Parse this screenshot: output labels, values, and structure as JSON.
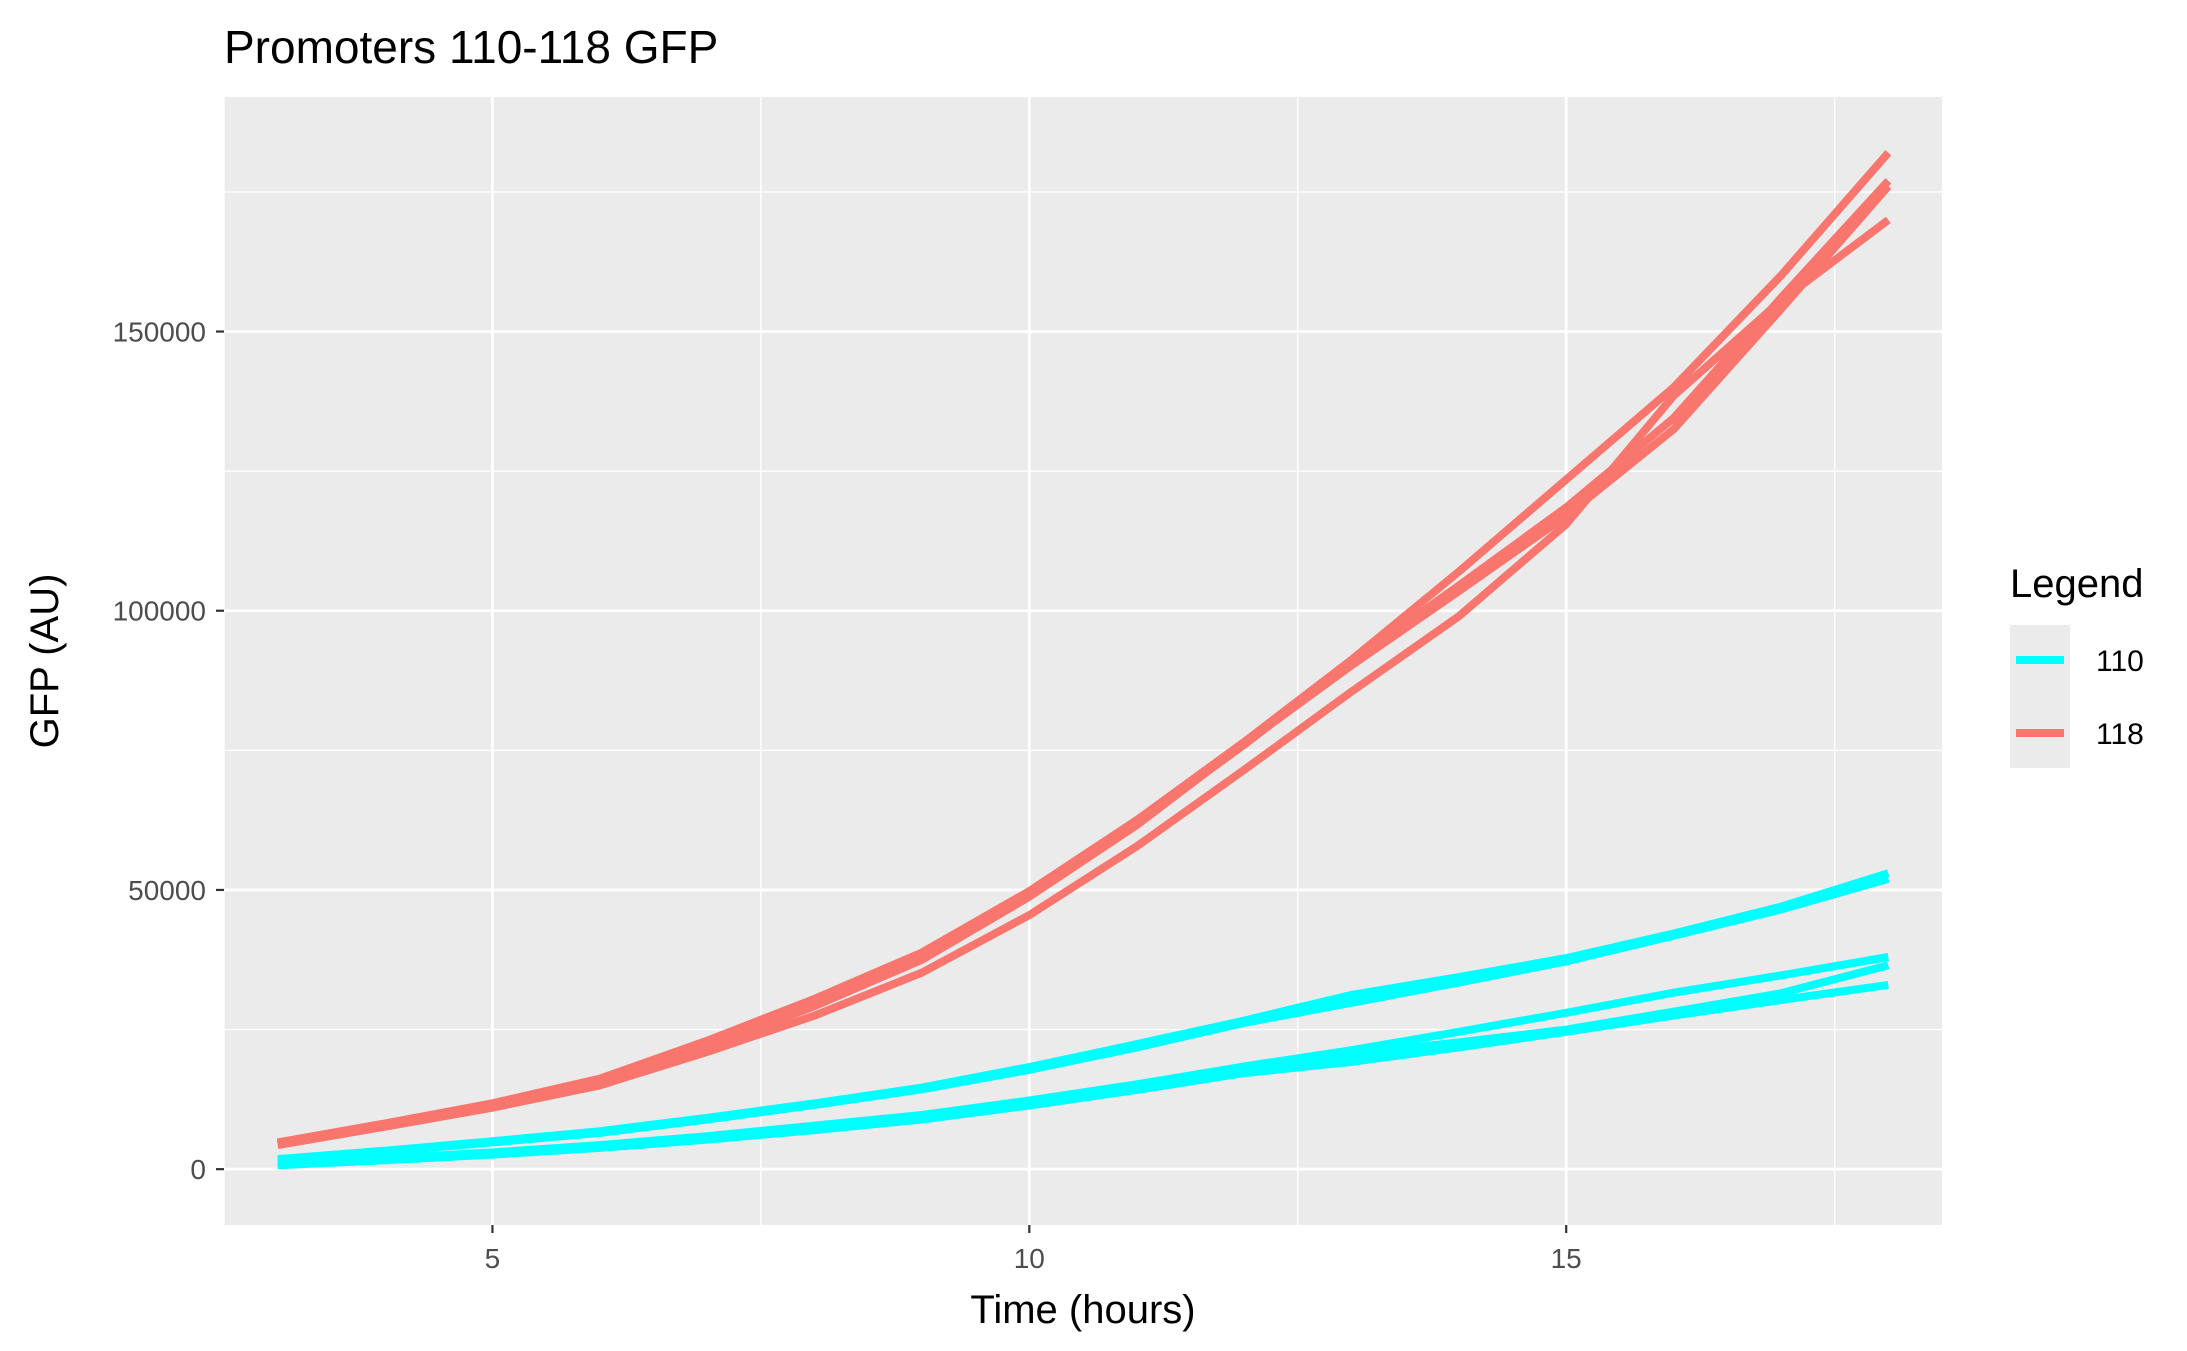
{
  "chart_data": {
    "type": "line",
    "title": "Promoters 110-118 GFP",
    "xlabel": "Time (hours)",
    "ylabel": "GFP (AU)",
    "xlim": [
      2.5,
      18.5
    ],
    "ylim": [
      -10000,
      192000
    ],
    "x_ticks": [
      5,
      10,
      15
    ],
    "x_tick_labels": [
      "5",
      "10",
      "15"
    ],
    "y_ticks": [
      0,
      50000,
      100000,
      150000
    ],
    "y_tick_labels": [
      "0",
      "50000",
      "100000",
      "150000"
    ],
    "x_minor_ticks": [
      2.5,
      7.5,
      12.5,
      17.5
    ],
    "y_minor_ticks": [
      25000,
      75000,
      125000,
      175000
    ],
    "grid": true,
    "legend": {
      "title": "Legend",
      "position": "right",
      "entries": [
        {
          "label": "110",
          "color": "#00ffff"
        },
        {
          "label": "118",
          "color": "#f8766d"
        }
      ]
    },
    "x": [
      3,
      4,
      5,
      6,
      7,
      8,
      9,
      10,
      11,
      12,
      13,
      14,
      15,
      16,
      17,
      18
    ],
    "series": [
      {
        "group": "110",
        "color": "#00ffff",
        "values": [
          1800,
          3300,
          5000,
          6800,
          9200,
          11800,
          14600,
          18300,
          22400,
          26600,
          31200,
          34400,
          37800,
          42200,
          47000,
          53000
        ]
      },
      {
        "group": "110",
        "color": "#00ffff",
        "values": [
          1600,
          3100,
          4800,
          6500,
          8900,
          11500,
          14300,
          17800,
          21800,
          26200,
          29800,
          33400,
          37200,
          41800,
          46500,
          52000
        ]
      },
      {
        "group": "110",
        "color": "#00ffff",
        "values": [
          900,
          1900,
          3000,
          4300,
          5900,
          7800,
          9700,
          12300,
          15200,
          18400,
          21300,
          24600,
          28000,
          31600,
          34700,
          38000
        ]
      },
      {
        "group": "110",
        "color": "#00ffff",
        "values": [
          800,
          1700,
          2800,
          4000,
          5600,
          7400,
          9400,
          11900,
          14700,
          17500,
          20600,
          22700,
          25000,
          28200,
          31500,
          36500
        ]
      },
      {
        "group": "110",
        "color": "#00ffff",
        "values": [
          700,
          1600,
          2600,
          3800,
          5300,
          7000,
          8900,
          11400,
          14200,
          17200,
          19200,
          21800,
          24600,
          27500,
          30300,
          33000
        ]
      },
      {
        "group": "118",
        "color": "#f8766d",
        "values": [
          4800,
          8200,
          11800,
          16200,
          23000,
          30500,
          38800,
          49800,
          62500,
          76500,
          91200,
          107000,
          123500,
          140000,
          160000,
          182000
        ]
      },
      {
        "group": "118",
        "color": "#f8766d",
        "values": [
          4700,
          8000,
          11500,
          15800,
          22400,
          30000,
          38200,
          49200,
          62000,
          76000,
          90800,
          104500,
          118500,
          134500,
          156000,
          177000
        ]
      },
      {
        "group": "118",
        "color": "#f8766d",
        "values": [
          4500,
          7800,
          11300,
          15500,
          21800,
          29200,
          37500,
          48800,
          61600,
          76200,
          90200,
          103500,
          117000,
          132500,
          154000,
          176000
        ]
      },
      {
        "group": "118",
        "color": "#f8766d",
        "values": [
          4300,
          7600,
          11000,
          15000,
          21000,
          27500,
          35200,
          45500,
          57800,
          71500,
          85500,
          99000,
          115500,
          138500,
          155500,
          170000
        ]
      }
    ]
  }
}
